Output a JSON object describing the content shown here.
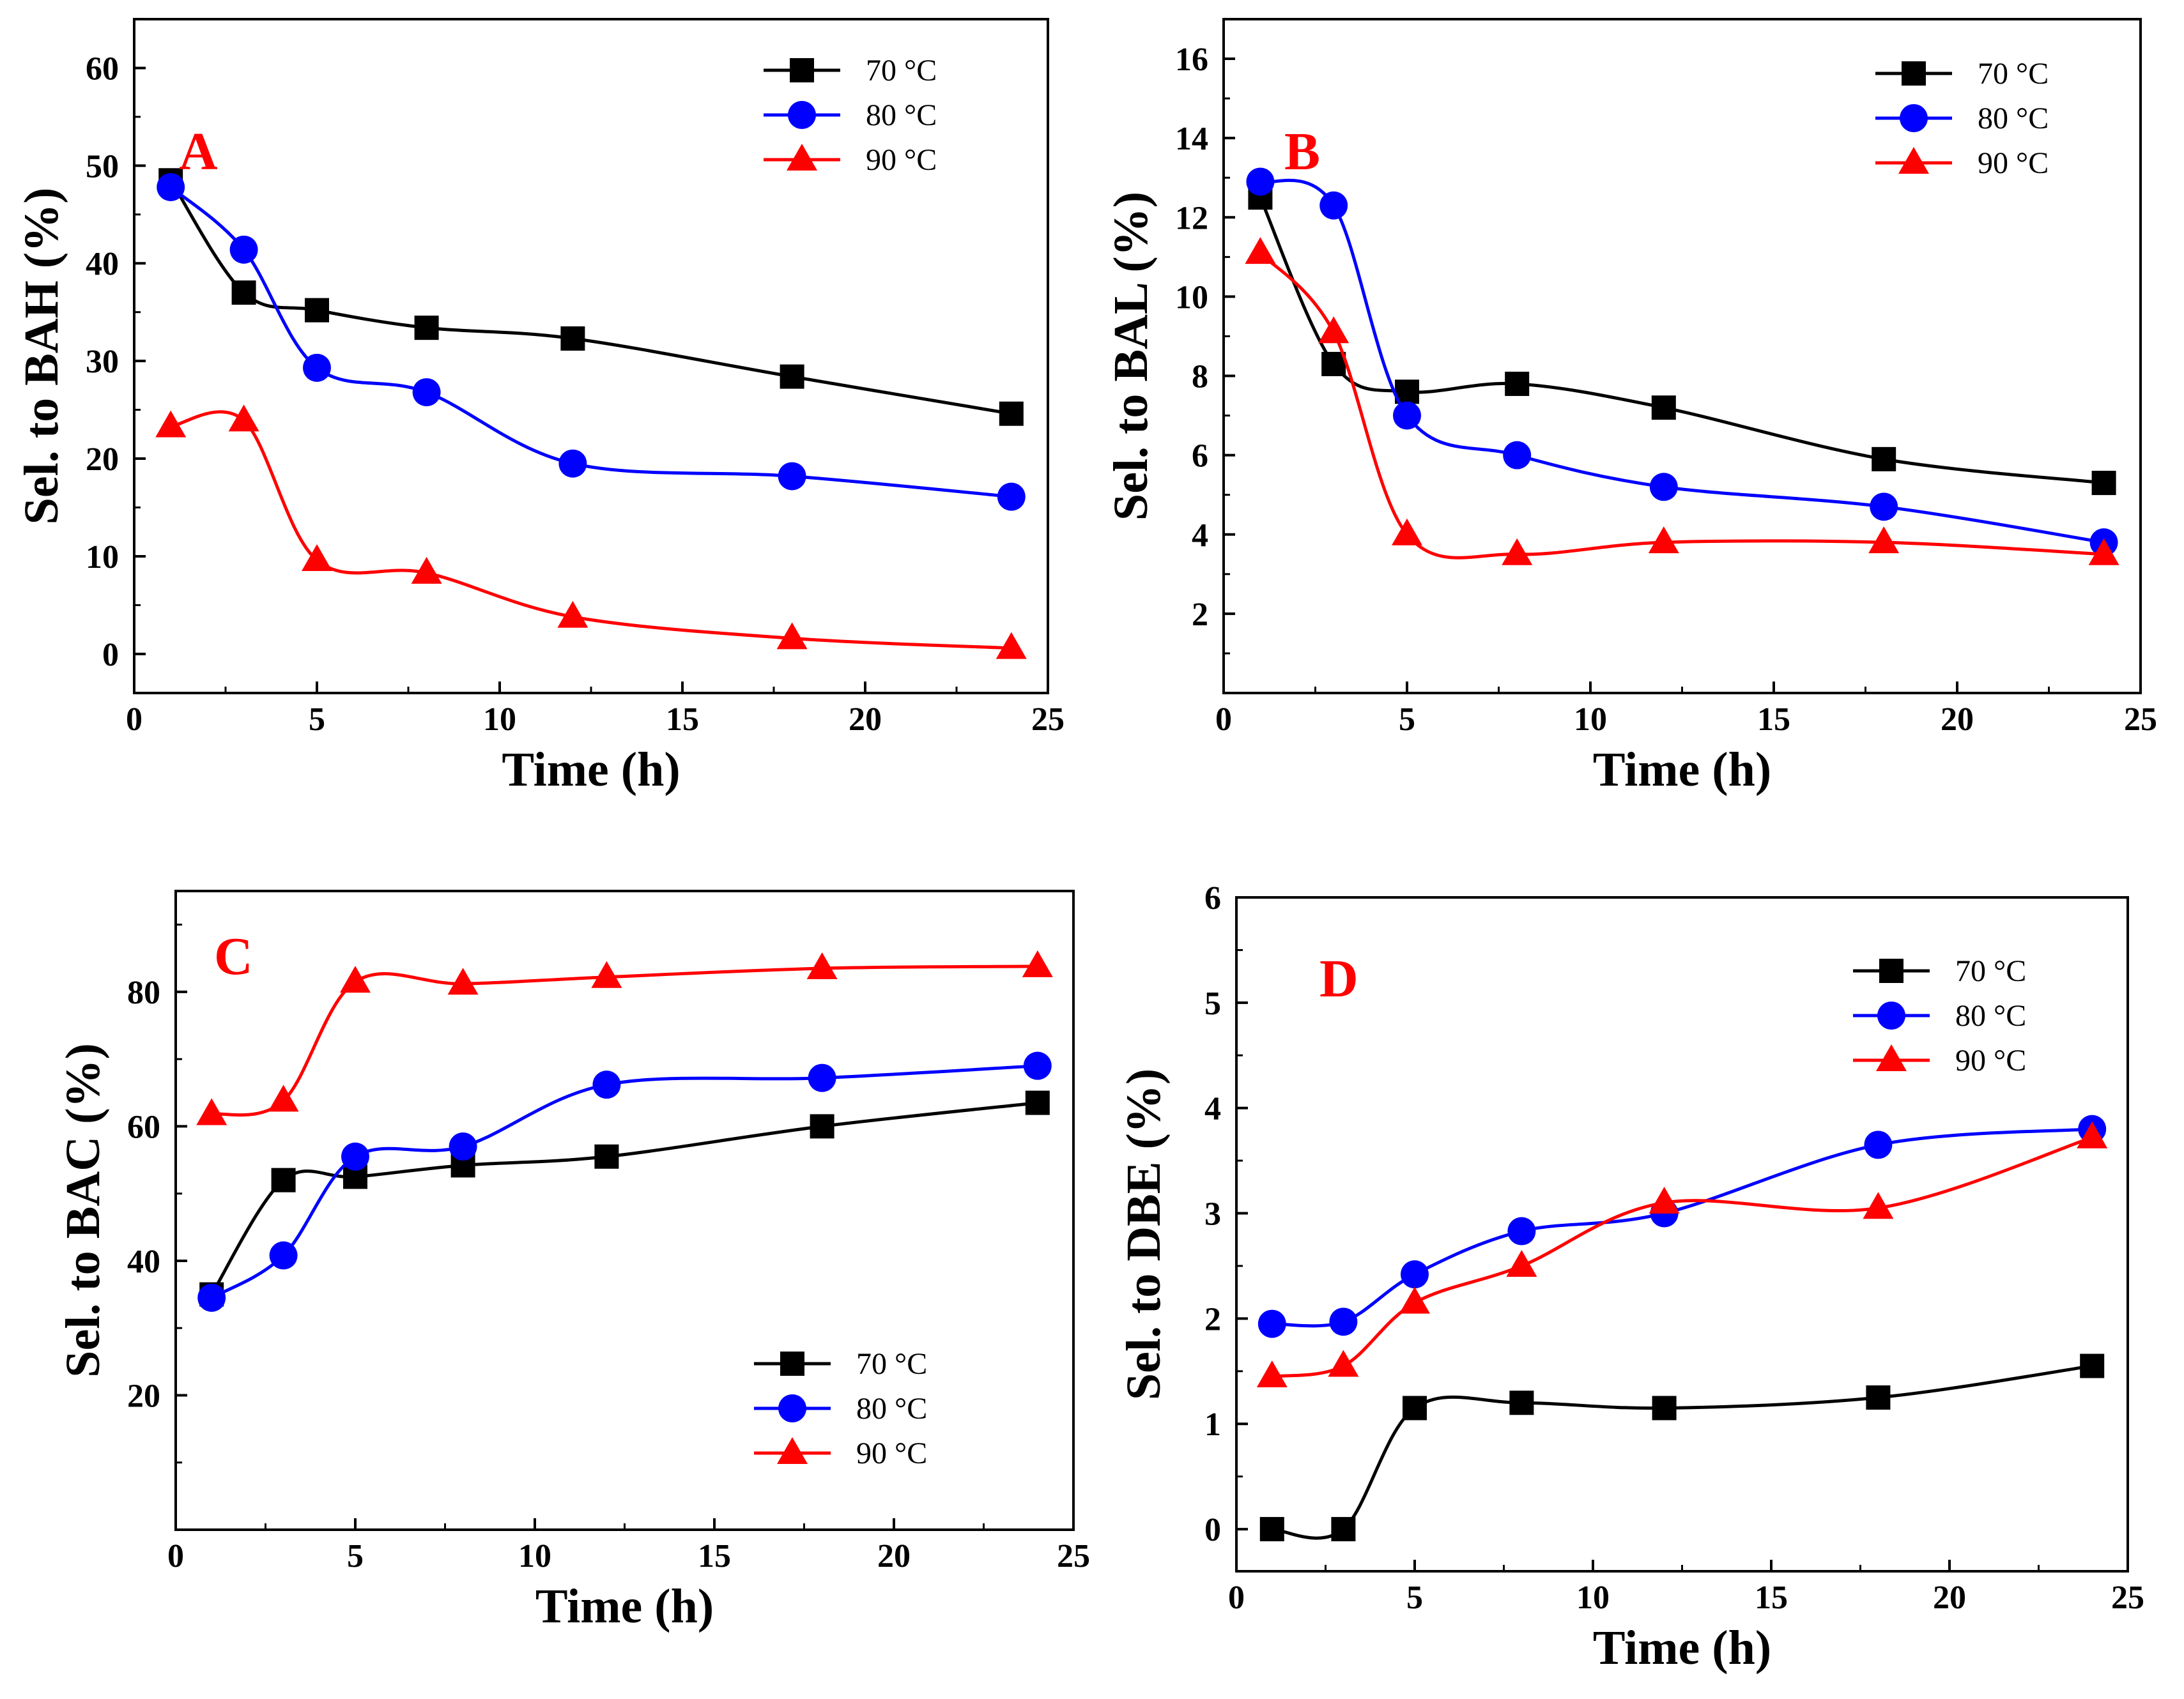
{
  "colors": {
    "70": "#000000",
    "80": "#0000ff",
    "90": "#ff0000",
    "panel_letter": "#ff0000"
  },
  "chart_data": [
    {
      "type": "line",
      "panel": "A",
      "xlabel": "Time (h)",
      "ylabel": "Sel. to BAH (%)",
      "xlim": [
        0,
        25
      ],
      "ylim": [
        -4,
        65
      ],
      "xticks": [
        0,
        5,
        10,
        15,
        20,
        25
      ],
      "yticks": [
        0,
        10,
        20,
        30,
        40,
        50,
        60
      ],
      "legend_position": "top-right",
      "x": [
        1,
        3,
        5,
        8,
        12,
        18,
        24
      ],
      "series": [
        {
          "name": "70 °C",
          "marker": "square",
          "values": [
            48.5,
            37.0,
            35.2,
            33.4,
            32.3,
            28.4,
            24.6
          ]
        },
        {
          "name": "80 °C",
          "marker": "circle",
          "values": [
            47.8,
            41.4,
            29.3,
            26.8,
            19.5,
            18.2,
            16.1
          ]
        },
        {
          "name": "90 °C",
          "marker": "triangle",
          "values": [
            23.3,
            23.9,
            9.6,
            8.3,
            3.8,
            1.6,
            0.6
          ]
        }
      ]
    },
    {
      "type": "line",
      "panel": "B",
      "xlabel": "Time (h)",
      "ylabel": "Sel. to BAL (%)",
      "xlim": [
        0,
        25
      ],
      "ylim": [
        0,
        17
      ],
      "xticks": [
        0,
        5,
        10,
        15,
        20,
        25
      ],
      "yticks": [
        2,
        4,
        6,
        8,
        10,
        12,
        14,
        16
      ],
      "legend_position": "top-right",
      "x": [
        1,
        3,
        5,
        8,
        12,
        18,
        24
      ],
      "series": [
        {
          "name": "70 °C",
          "marker": "square",
          "values": [
            12.5,
            8.3,
            7.6,
            7.8,
            7.2,
            5.9,
            5.3
          ]
        },
        {
          "name": "80 °C",
          "marker": "circle",
          "values": [
            12.9,
            12.3,
            7.0,
            6.0,
            5.2,
            4.7,
            3.8
          ]
        },
        {
          "name": "90 °C",
          "marker": "triangle",
          "values": [
            11.1,
            9.1,
            4.0,
            3.5,
            3.8,
            3.8,
            3.5
          ]
        }
      ]
    },
    {
      "type": "line",
      "panel": "C",
      "xlabel": "Time (h)",
      "ylabel": "Sel. to BAC (%)",
      "xlim": [
        0,
        25
      ],
      "ylim": [
        0,
        95
      ],
      "xticks": [
        0,
        5,
        10,
        15,
        20,
        25
      ],
      "yticks": [
        20,
        40,
        60,
        80
      ],
      "legend_position": "bottom-right",
      "x": [
        1,
        3,
        5,
        8,
        12,
        18,
        24
      ],
      "series": [
        {
          "name": "70 °C",
          "marker": "square",
          "values": [
            35.0,
            52.0,
            52.5,
            54.2,
            55.5,
            60.0,
            63.5
          ]
        },
        {
          "name": "80 °C",
          "marker": "circle",
          "values": [
            34.5,
            40.8,
            55.5,
            57.0,
            66.2,
            67.2,
            69.0
          ]
        },
        {
          "name": "90 °C",
          "marker": "triangle",
          "values": [
            61.8,
            63.8,
            81.5,
            81.2,
            82.2,
            83.5,
            83.8
          ]
        }
      ]
    },
    {
      "type": "line",
      "panel": "D",
      "xlabel": "Time (h)",
      "ylabel": "Sel. to DBE (%)",
      "xlim": [
        0,
        25
      ],
      "ylim": [
        -0.4,
        6
      ],
      "xticks": [
        0,
        5,
        10,
        15,
        20,
        25
      ],
      "yticks": [
        0,
        1,
        2,
        3,
        4,
        5,
        6
      ],
      "legend_position": "top-right",
      "x": [
        1,
        3,
        5,
        8,
        12,
        18,
        24
      ],
      "series": [
        {
          "name": "70 °C",
          "marker": "square",
          "values": [
            0.0,
            0.0,
            1.15,
            1.2,
            1.15,
            1.25,
            1.55
          ]
        },
        {
          "name": "80 °C",
          "marker": "circle",
          "values": [
            1.95,
            1.97,
            2.42,
            2.83,
            3.0,
            3.65,
            3.8
          ]
        },
        {
          "name": "90 °C",
          "marker": "triangle",
          "values": [
            1.45,
            1.55,
            2.15,
            2.5,
            3.1,
            3.05,
            3.72
          ]
        }
      ]
    }
  ]
}
